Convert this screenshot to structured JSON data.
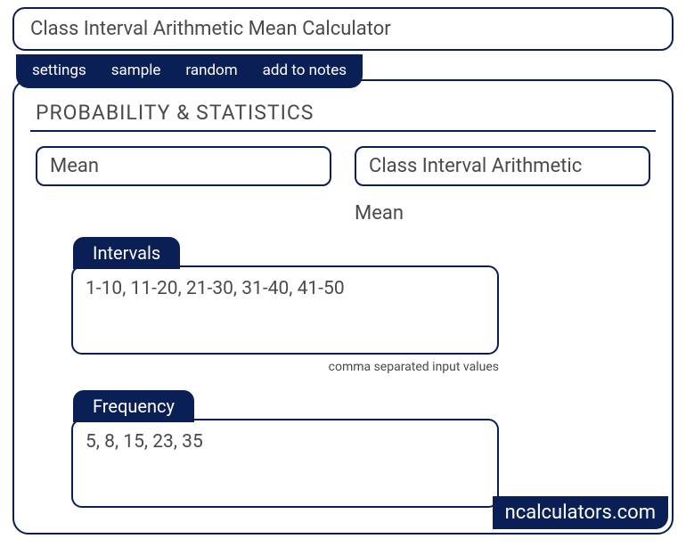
{
  "colors": {
    "accent": "#0a1f55",
    "text": "#4a4a4a",
    "on_accent": "#ffffff",
    "background": "#ffffff"
  },
  "header": {
    "title": "Class Interval Arithmetic Mean Calculator"
  },
  "tabs": {
    "settings": "settings",
    "sample": "sample",
    "random": "random",
    "add_to_notes": "add to notes"
  },
  "panel": {
    "section_title": "PROBABILITY & STATISTICS",
    "pill_left": "Mean",
    "pill_right": "Class Interval Arithmetic",
    "sub_label_right": "Mean"
  },
  "intervals": {
    "label": "Intervals",
    "value": "1-10, 11-20, 21-30, 31-40, 41-50",
    "hint": "comma separated input values"
  },
  "frequency": {
    "label": "Frequency",
    "value": "5, 8, 15, 23, 35"
  },
  "footer": {
    "watermark": "ncalculators.com"
  }
}
